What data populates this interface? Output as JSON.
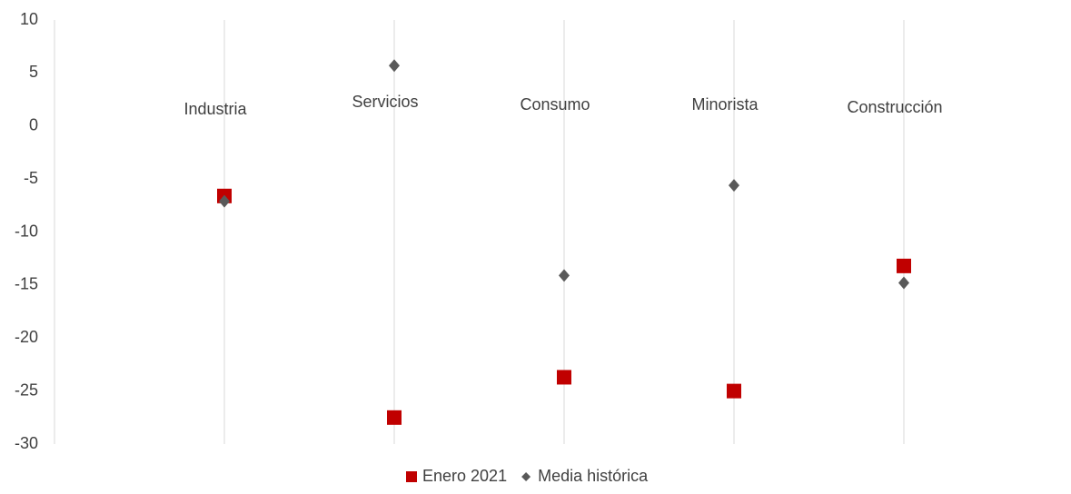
{
  "chart_data": {
    "type": "scatter",
    "categories": [
      "Industria",
      "Servicios",
      "Consumo",
      "Minorista",
      "Construcción"
    ],
    "series": [
      {
        "name": "Enero 2021",
        "color": "#c00000",
        "marker": "square",
        "values": [
          -6.6,
          -27.5,
          -23.7,
          -25.0,
          -13.2
        ]
      },
      {
        "name": "Media histórica",
        "color": "#595959",
        "marker": "diamond",
        "values": [
          -7.1,
          5.7,
          -14.1,
          -5.6,
          -14.8
        ]
      }
    ],
    "ylim": [
      -30,
      10
    ],
    "yticks": [
      -30,
      -25,
      -20,
      -15,
      -10,
      -5,
      0,
      5,
      10
    ],
    "grid": true
  }
}
